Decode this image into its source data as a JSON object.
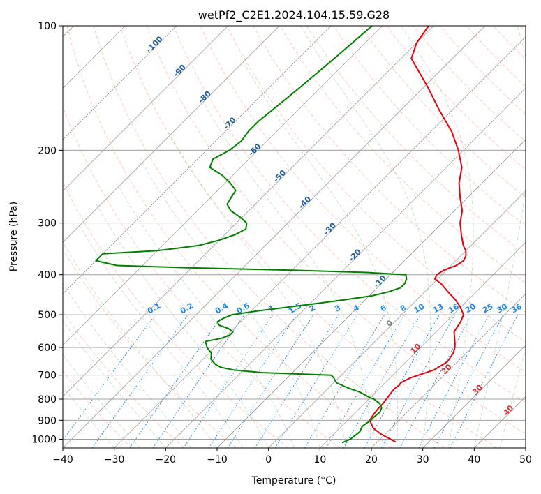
{
  "chart_data": {
    "type": "line",
    "diagram": "skew-T log-P",
    "title": "wetPf2_C2E1.2024.104.15.59.G28",
    "xlabel": "Temperature (°C)",
    "ylabel": "Pressure (hPa)",
    "xlim": [
      -40,
      50
    ],
    "ylim": [
      1050,
      100
    ],
    "y_scale": "log",
    "x_ticks": [
      "−40",
      "−30",
      "−20",
      "−10",
      "0",
      "10",
      "20",
      "30",
      "40",
      "50"
    ],
    "y_ticks": [
      "100",
      "200",
      "300",
      "400",
      "500",
      "600",
      "700",
      "800",
      "900",
      "1000"
    ],
    "grid": true,
    "isotherm_labels": [
      "-100",
      "-90",
      "-80",
      "-70",
      "-60",
      "-50",
      "-40",
      "-30",
      "-20",
      "-10",
      "0",
      "10",
      "20",
      "30",
      "40"
    ],
    "mixing_ratio_labels": [
      "0.1",
      "0.2",
      "0.4",
      "0.6",
      "1",
      "1.5",
      "2",
      "3",
      "4",
      "6",
      "8",
      "10",
      "13",
      "16",
      "20",
      "25",
      "30",
      "36"
    ],
    "series": [
      {
        "name": "",
        "role": "temperature",
        "color": "#e8000b",
        "p": [
          1015,
          1000,
          970,
          940,
          900,
          870,
          850,
          820,
          800,
          780,
          760,
          750,
          740,
          730,
          710,
          700,
          680,
          650,
          620,
          600,
          580,
          550,
          520,
          500,
          480,
          460,
          440,
          420,
          410,
          400,
          390,
          380,
          370,
          360,
          350,
          340,
          320,
          300,
          280,
          260,
          240,
          220,
          200,
          180,
          160,
          140,
          120,
          110,
          100
        ],
        "t": [
          23.5,
          22.0,
          19.0,
          16.5,
          14.3,
          13.9,
          13.7,
          13.6,
          13.4,
          13.2,
          13.0,
          13.0,
          13.2,
          13.0,
          14.0,
          15.0,
          17.0,
          18.0,
          17.5,
          16.7,
          15.5,
          13.5,
          12.8,
          12.0,
          10.0,
          7.5,
          4.5,
          1.5,
          -0.5,
          -1.0,
          -0.5,
          1.0,
          1.5,
          1.0,
          0.0,
          -1.5,
          -4.0,
          -6.5,
          -8.5,
          -11.5,
          -14.5,
          -17.0,
          -21.0,
          -26.0,
          -32.5,
          -39.5,
          -48.0,
          -50.0,
          -51.0
        ]
      },
      {
        "name": "",
        "role": "dewpoint",
        "color": "#008000",
        "p": [
          1020,
          1000,
          960,
          930,
          900,
          880,
          860,
          840,
          820,
          800,
          790,
          770,
          750,
          730,
          710,
          700,
          690,
          680,
          670,
          660,
          650,
          640,
          630,
          620,
          600,
          580,
          570,
          560,
          550,
          540,
          530,
          520,
          510,
          500,
          490,
          480,
          470,
          460,
          450,
          440,
          430,
          420,
          410,
          400,
          395,
          390,
          385,
          380,
          370,
          360,
          356,
          353,
          350,
          340,
          330,
          320,
          310,
          300,
          290,
          280,
          270,
          260,
          250,
          240,
          230,
          220,
          210,
          200,
          190,
          180,
          170,
          160,
          150,
          140,
          130,
          120,
          110,
          100
        ],
        "t": [
          13.3,
          14.2,
          14.6,
          14.0,
          14.5,
          14.5,
          14.7,
          14.2,
          13.0,
          11.0,
          9.5,
          7.0,
          3.5,
          0.5,
          -1.0,
          -2.0,
          -16.0,
          -22.0,
          -25.0,
          -26.5,
          -27.5,
          -28.5,
          -29.0,
          -29.5,
          -31.5,
          -33.0,
          -30.5,
          -29.5,
          -29.5,
          -31.0,
          -33.5,
          -34.5,
          -34.0,
          -33.0,
          -29.0,
          -24.0,
          -19.0,
          -14.0,
          -9.5,
          -7.0,
          -5.5,
          -5.5,
          -6.0,
          -7.0,
          -15.0,
          -30.0,
          -50.0,
          -65.0,
          -70.0,
          -70.0,
          -70.0,
          -65.0,
          -60.0,
          -53.0,
          -50.0,
          -48.0,
          -47.0,
          -48.0,
          -50.5,
          -53.5,
          -55.5,
          -56.0,
          -56.5,
          -59.0,
          -62.0,
          -66.0,
          -67.0,
          -65.5,
          -65.0,
          -65.5,
          -65.5,
          -65.0,
          -64.5,
          -64.0,
          -63.5,
          -63.0,
          -62.5,
          -62.0
        ]
      }
    ]
  }
}
